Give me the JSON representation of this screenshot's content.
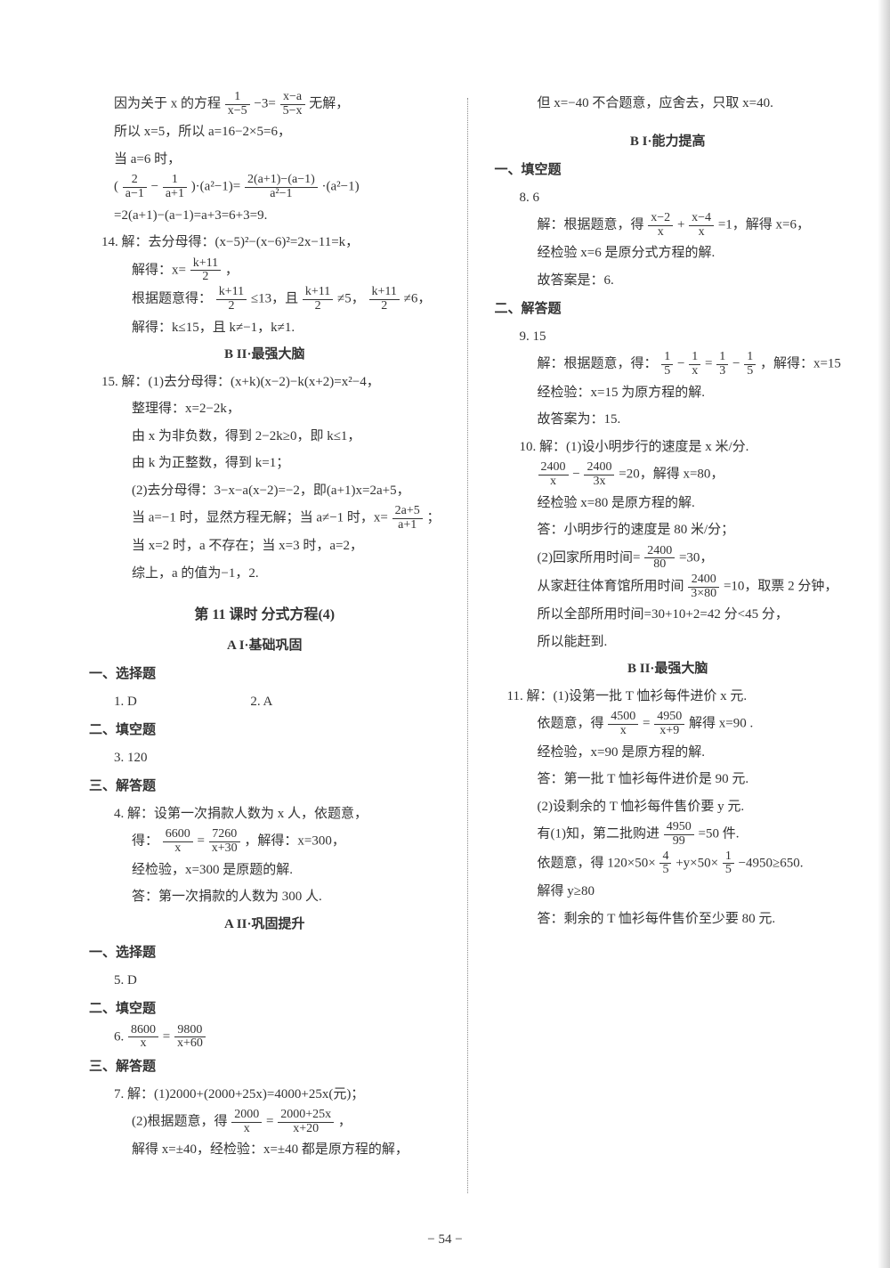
{
  "page_number": "− 54 −",
  "background_color": "#ffffff",
  "text_color": "#333333",
  "font_family": "SimSun",
  "base_fontsize": 15,
  "left_column": {
    "pre_lines": [
      {
        "text": "因为关于 x 的方程 {frac:1:x−5} −3= {frac:x−a:5−x} 无解，",
        "indent": 1
      },
      {
        "text": "所以 x=5，所以 a=16−2×5=6，",
        "indent": 1
      },
      {
        "text": "当 a=6 时，",
        "indent": 1
      },
      {
        "text": "( {frac:2:a−1} − {frac:1:a+1} )·(a²−1)= {frac:2(a+1)−(a−1):a²−1} ·(a²−1)",
        "indent": 1
      },
      {
        "text": "=2(a+1)−(a−1)=a+3=6+3=9.",
        "indent": 1
      },
      {
        "text": "14. 解：去分母得：(x−5)²−(x−6)²=2x−11=k，",
        "indent": 0
      },
      {
        "text": "解得：x= {frac:k+11:2} ，",
        "indent": 2
      },
      {
        "text": "根据题意得： {frac:k+11:2} ≤13，且 {frac:k+11:2} ≠5， {frac:k+11:2} ≠6，",
        "indent": 2
      },
      {
        "text": "解得：k≤15，且 k≠−1，k≠1.",
        "indent": 2
      }
    ],
    "bII_title": "B II·最强大脑",
    "bII_lines": [
      {
        "text": "15. 解：(1)去分母得：(x+k)(x−2)−k(x+2)=x²−4，",
        "indent": 0
      },
      {
        "text": "整理得：x=2−2k，",
        "indent": 2
      },
      {
        "text": "由 x 为非负数，得到 2−2k≥0，即 k≤1，",
        "indent": 2
      },
      {
        "text": "由 k 为正整数，得到 k=1；",
        "indent": 2
      },
      {
        "text": "(2)去分母得：3−x−a(x−2)=−2，即(a+1)x=2a+5，",
        "indent": 2
      },
      {
        "text": "当 a=−1 时，显然方程无解；当 a≠−1 时，x= {frac:2a+5:a+1} ；",
        "indent": 2
      },
      {
        "text": "当 x=2 时，a 不存在；当 x=3 时，a=2，",
        "indent": 2
      },
      {
        "text": "综上，a 的值为−1，2.",
        "indent": 2
      }
    ],
    "lesson_title": "第 11 课时 分式方程(4)",
    "aI_title": "A I·基础巩固",
    "aI": {
      "cat1": "一、选择题",
      "q1": "1. D",
      "q2": "2. A",
      "cat2": "二、填空题",
      "q3": "3. 120",
      "cat3": "三、解答题",
      "q4_lines": [
        {
          "text": "4. 解：设第一次捐款人数为 x 人，依题意，",
          "indent": 1
        },
        {
          "text": "得： {frac:6600:x} = {frac:7260:x+30} ，解得：x=300，",
          "indent": 2
        },
        {
          "text": "经检验，x=300 是原题的解.",
          "indent": 2
        },
        {
          "text": "答：第一次捐款的人数为 300 人.",
          "indent": 2
        }
      ]
    },
    "aII_title": "A II·巩固提升",
    "aII": {
      "cat1": "一、选择题",
      "q5": "5. D",
      "cat2": "二、填空题",
      "q6": "6. {frac:8600:x} = {frac:9800:x+60}",
      "cat3": "三、解答题",
      "q7_lines": [
        {
          "text": "7. 解：(1)2000+(2000+25x)=4000+25x(元)；",
          "indent": 1
        },
        {
          "text": "(2)根据题意，得 {frac:2000:x} = {frac:2000+25x:x+20} ，",
          "indent": 2
        },
        {
          "text": "解得 x=±40，经检验：x=±40 都是原方程的解，",
          "indent": 2
        }
      ]
    }
  },
  "right_column": {
    "top_line": "但 x=−40 不合题意，应舍去，只取 x=40.",
    "bI_title": "B I·能力提高",
    "bI": {
      "cat1": "一、填空题",
      "q8_lines": [
        {
          "text": "8. 6",
          "indent": 1
        },
        {
          "text": "解：根据题意，得 {frac:x−2:x} + {frac:x−4:x} =1，解得 x=6，",
          "indent": 2
        },
        {
          "text": "经检验 x=6 是原分式方程的解.",
          "indent": 2
        },
        {
          "text": "故答案是：6.",
          "indent": 2
        }
      ],
      "cat2": "二、解答题",
      "q9_lines": [
        {
          "text": "9. 15",
          "indent": 1
        },
        {
          "text": "解：根据题意，得： {frac:1:5} − {frac:1:x} = {frac:1:3} − {frac:1:5} ，解得：x=15",
          "indent": 2
        },
        {
          "text": "经检验：x=15 为原方程的解.",
          "indent": 2
        },
        {
          "text": "故答案为：15.",
          "indent": 2
        }
      ],
      "q10_lines": [
        {
          "text": "10. 解：(1)设小明步行的速度是 x 米/分.",
          "indent": 1
        },
        {
          "text": " {frac:2400:x} − {frac:2400:3x} =20，解得 x=80，",
          "indent": 2
        },
        {
          "text": "经检验 x=80 是原方程的解.",
          "indent": 2
        },
        {
          "text": "答：小明步行的速度是 80 米/分；",
          "indent": 2
        },
        {
          "text": "(2)回家所用时间= {frac:2400:80} =30，",
          "indent": 2
        },
        {
          "text": "从家赶往体育馆所用时间 {frac:2400:3×80} =10，取票 2 分钟，",
          "indent": 2
        },
        {
          "text": "所以全部所用时间=30+10+2=42 分<45 分，",
          "indent": 2
        },
        {
          "text": "所以能赶到.",
          "indent": 2
        }
      ]
    },
    "bII_title": "B II·最强大脑",
    "bII_lines": [
      {
        "text": "11. 解：(1)设第一批 T 恤衫每件进价 x 元.",
        "indent": 0
      },
      {
        "text": "依题意，得 {frac:4500:x} = {frac:4950:x+9} 解得 x=90 .",
        "indent": 2
      },
      {
        "text": "经检验，x=90 是原方程的解.",
        "indent": 2
      },
      {
        "text": "答：第一批 T 恤衫每件进价是 90 元.",
        "indent": 2
      },
      {
        "text": "(2)设剩余的 T 恤衫每件售价要 y 元.",
        "indent": 2
      },
      {
        "text": "有(1)知，第二批购进 {frac:4950:99} =50 件.",
        "indent": 2
      },
      {
        "text": "依题意，得 120×50× {frac:4:5} +y×50× {frac:1:5} −4950≥650.",
        "indent": 2
      },
      {
        "text": "解得 y≥80",
        "indent": 2
      },
      {
        "text": "答：剩余的 T 恤衫每件售价至少要 80 元.",
        "indent": 2
      }
    ]
  }
}
